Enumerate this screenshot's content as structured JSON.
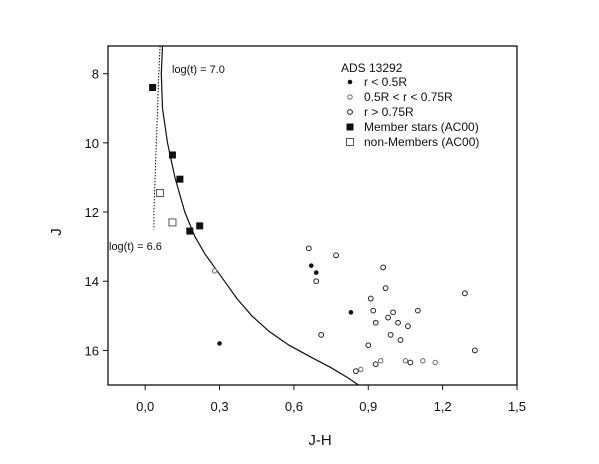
{
  "chart_data": {
    "type": "scatter",
    "title": "ADS 13292",
    "xlabel": "J-H",
    "ylabel": "J",
    "xlim": [
      -0.15,
      1.5
    ],
    "ylim": [
      7.2,
      17.0
    ],
    "y_inverted": true,
    "grid": false,
    "legend_position": "top-right",
    "x_ticks": [
      0.0,
      0.3,
      0.6,
      0.9,
      1.2,
      1.5
    ],
    "x_tick_labels": [
      "0,0",
      "0,3",
      "0,6",
      "0,9",
      "1,2",
      "1,5"
    ],
    "y_ticks": [
      8,
      10,
      12,
      14,
      16
    ],
    "y_tick_labels": [
      "8",
      "10",
      "12",
      "14",
      "16"
    ],
    "annotations": [
      {
        "text": "log(t) = 7.0",
        "x": 0.1,
        "y": 7.75
      },
      {
        "text": "log(t) = 6.6",
        "x": -0.15,
        "y": 12.95
      }
    ],
    "series": [
      {
        "name": "r < 0.5R",
        "marker": "small-filled-circle",
        "points": [
          {
            "x": 0.67,
            "y": 13.55
          },
          {
            "x": 0.69,
            "y": 13.75
          },
          {
            "x": 0.83,
            "y": 14.9
          },
          {
            "x": 0.3,
            "y": 15.8
          }
        ]
      },
      {
        "name": "0.5R < r < 0.75R",
        "marker": "small-grey-circle",
        "points": [
          {
            "x": 0.28,
            "y": 13.7
          },
          {
            "x": 0.87,
            "y": 16.55
          },
          {
            "x": 0.95,
            "y": 16.3
          },
          {
            "x": 1.05,
            "y": 16.3
          },
          {
            "x": 1.12,
            "y": 16.3
          },
          {
            "x": 1.17,
            "y": 16.35
          }
        ]
      },
      {
        "name": "r > 0.75R",
        "marker": "open-circle",
        "points": [
          {
            "x": 0.66,
            "y": 13.05
          },
          {
            "x": 0.77,
            "y": 13.25
          },
          {
            "x": 0.69,
            "y": 14.0
          },
          {
            "x": 0.96,
            "y": 13.6
          },
          {
            "x": 0.91,
            "y": 14.5
          },
          {
            "x": 0.92,
            "y": 14.85
          },
          {
            "x": 0.93,
            "y": 15.2
          },
          {
            "x": 0.9,
            "y": 15.85
          },
          {
            "x": 0.71,
            "y": 15.55
          },
          {
            "x": 0.97,
            "y": 14.2
          },
          {
            "x": 0.98,
            "y": 15.05
          },
          {
            "x": 1.0,
            "y": 14.9
          },
          {
            "x": 1.02,
            "y": 15.2
          },
          {
            "x": 0.99,
            "y": 15.55
          },
          {
            "x": 1.06,
            "y": 15.3
          },
          {
            "x": 1.1,
            "y": 14.85
          },
          {
            "x": 1.03,
            "y": 15.7
          },
          {
            "x": 1.29,
            "y": 14.35
          },
          {
            "x": 1.33,
            "y": 16.0
          },
          {
            "x": 0.93,
            "y": 16.4
          },
          {
            "x": 0.85,
            "y": 16.6
          },
          {
            "x": 1.07,
            "y": 16.35
          }
        ]
      },
      {
        "name": "Member stars (AC00)",
        "marker": "filled-square",
        "points": [
          {
            "x": 0.03,
            "y": 8.4
          },
          {
            "x": 0.11,
            "y": 10.35
          },
          {
            "x": 0.14,
            "y": 11.05
          },
          {
            "x": 0.18,
            "y": 12.55
          },
          {
            "x": 0.22,
            "y": 12.4
          }
        ]
      },
      {
        "name": "non-Members (AC00)",
        "marker": "open-square",
        "points": [
          {
            "x": 0.06,
            "y": 11.45
          },
          {
            "x": 0.11,
            "y": 12.3
          }
        ]
      }
    ],
    "isochrones": [
      {
        "name": "log(t) = 7.0",
        "style": "solid",
        "points": [
          {
            "x": 0.07,
            "y": 7.2
          },
          {
            "x": 0.065,
            "y": 8.0
          },
          {
            "x": 0.07,
            "y": 9.0
          },
          {
            "x": 0.09,
            "y": 10.0
          },
          {
            "x": 0.12,
            "y": 11.0
          },
          {
            "x": 0.16,
            "y": 12.0
          },
          {
            "x": 0.2,
            "y": 12.7
          },
          {
            "x": 0.24,
            "y": 13.2
          },
          {
            "x": 0.29,
            "y": 13.7
          },
          {
            "x": 0.33,
            "y": 14.1
          },
          {
            "x": 0.37,
            "y": 14.5
          },
          {
            "x": 0.43,
            "y": 15.0
          },
          {
            "x": 0.5,
            "y": 15.45
          },
          {
            "x": 0.58,
            "y": 15.85
          },
          {
            "x": 0.67,
            "y": 16.2
          },
          {
            "x": 0.75,
            "y": 16.5
          },
          {
            "x": 0.82,
            "y": 16.8
          },
          {
            "x": 0.86,
            "y": 17.0
          }
        ]
      },
      {
        "name": "log(t) = 6.6",
        "style": "dotted",
        "points": [
          {
            "x": 0.06,
            "y": 7.2
          },
          {
            "x": 0.055,
            "y": 8.0
          },
          {
            "x": 0.05,
            "y": 9.0
          },
          {
            "x": 0.045,
            "y": 10.0
          },
          {
            "x": 0.04,
            "y": 11.0
          },
          {
            "x": 0.035,
            "y": 12.0
          },
          {
            "x": 0.035,
            "y": 12.5
          }
        ]
      }
    ]
  }
}
